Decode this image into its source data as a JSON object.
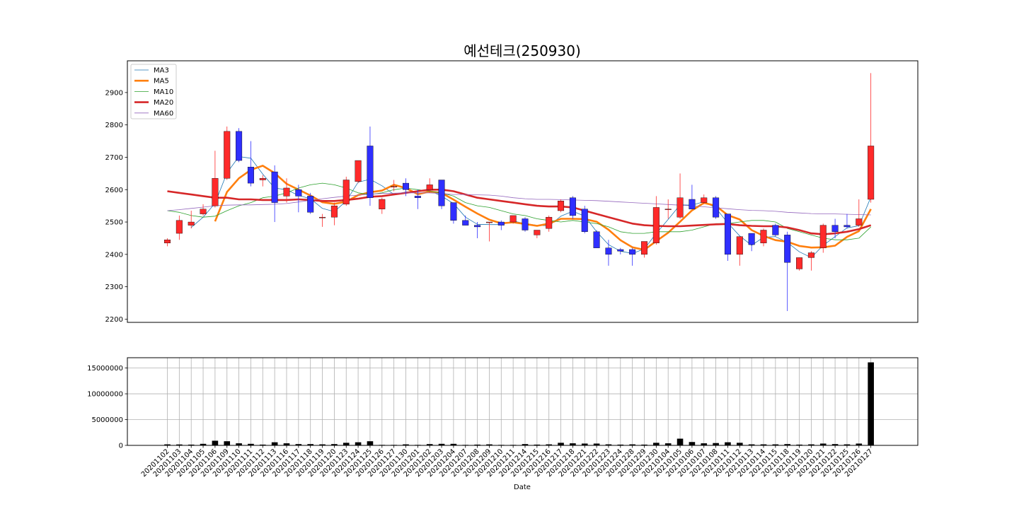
{
  "chart_data": {
    "type": "candlestick",
    "title": "예선테크(250930)",
    "xlabel": "Date",
    "legend": {
      "placement": "top-left",
      "entries": [
        {
          "label": "MA3",
          "color": "#1f77b4"
        },
        {
          "label": "MA5",
          "color": "#ff7f0e"
        },
        {
          "label": "MA10",
          "color": "#2ca02c"
        },
        {
          "label": "MA20",
          "color": "#d62728"
        },
        {
          "label": "MA60",
          "color": "#9467bd"
        }
      ]
    },
    "price_axis": {
      "ylim": [
        2190,
        2998
      ],
      "ticks": [
        2200,
        2300,
        2400,
        2500,
        2600,
        2700,
        2800,
        2900
      ],
      "grid": false
    },
    "volume_axis": {
      "ylim": [
        0,
        17000000
      ],
      "ticks": [
        0,
        5000000,
        10000000,
        15000000
      ],
      "tick_labels": [
        "0",
        "5000000",
        "10000000",
        "15000000"
      ],
      "grid": true
    },
    "colors": {
      "up": "#ff2a2a",
      "down": "#2f2fff",
      "volume": "#000000"
    },
    "dates": [
      "20201102",
      "20201103",
      "20201104",
      "20201105",
      "20201106",
      "20201109",
      "20201110",
      "20201111",
      "20201112",
      "20201113",
      "20201116",
      "20201117",
      "20201118",
      "20201119",
      "20201120",
      "20201123",
      "20201124",
      "20201125",
      "20201126",
      "20201127",
      "20201130",
      "20201201",
      "20201202",
      "20201203",
      "20201204",
      "20201207",
      "20201208",
      "20201209",
      "20201210",
      "20201211",
      "20201214",
      "20201215",
      "20201216",
      "20201217",
      "20201218",
      "20201221",
      "20201222",
      "20201223",
      "20201224",
      "20201228",
      "20201229",
      "20201230",
      "20210104",
      "20210105",
      "20210106",
      "20210107",
      "20210108",
      "20210111",
      "20210112",
      "20210113",
      "20210114",
      "20210115",
      "20210118",
      "20210119",
      "20210120",
      "20210121",
      "20210122",
      "20210125",
      "20210126",
      "20210127"
    ],
    "ohlc": [
      [
        2435,
        2450,
        2425,
        2445
      ],
      [
        2465,
        2520,
        2445,
        2505
      ],
      [
        2490,
        2535,
        2480,
        2500
      ],
      [
        2525,
        2555,
        2520,
        2540
      ],
      [
        2550,
        2720,
        2545,
        2635
      ],
      [
        2635,
        2795,
        2630,
        2780
      ],
      [
        2780,
        2790,
        2685,
        2690
      ],
      [
        2670,
        2750,
        2610,
        2620
      ],
      [
        2630,
        2645,
        2610,
        2635
      ],
      [
        2655,
        2675,
        2500,
        2560
      ],
      [
        2580,
        2635,
        2560,
        2605
      ],
      [
        2600,
        2615,
        2530,
        2580
      ],
      [
        2580,
        2590,
        2525,
        2530
      ],
      [
        2515,
        2525,
        2485,
        2515
      ],
      [
        2515,
        2560,
        2490,
        2550
      ],
      [
        2555,
        2640,
        2550,
        2630
      ],
      [
        2625,
        2690,
        2620,
        2690
      ],
      [
        2735,
        2795,
        2550,
        2575
      ],
      [
        2540,
        2575,
        2525,
        2570
      ],
      [
        2610,
        2630,
        2595,
        2610
      ],
      [
        2620,
        2635,
        2580,
        2600
      ],
      [
        2580,
        2600,
        2540,
        2575
      ],
      [
        2600,
        2635,
        2590,
        2615
      ],
      [
        2630,
        2630,
        2540,
        2550
      ],
      [
        2560,
        2560,
        2495,
        2505
      ],
      [
        2505,
        2520,
        2490,
        2490
      ],
      [
        2490,
        2500,
        2450,
        2485
      ],
      [
        2500,
        2500,
        2440,
        2500
      ],
      [
        2500,
        2505,
        2475,
        2490
      ],
      [
        2500,
        2520,
        2495,
        2520
      ],
      [
        2510,
        2515,
        2470,
        2475
      ],
      [
        2460,
        2475,
        2450,
        2475
      ],
      [
        2480,
        2520,
        2470,
        2515
      ],
      [
        2535,
        2570,
        2530,
        2565
      ],
      [
        2575,
        2580,
        2510,
        2520
      ],
      [
        2540,
        2550,
        2465,
        2470
      ],
      [
        2470,
        2475,
        2420,
        2420
      ],
      [
        2420,
        2445,
        2365,
        2400
      ],
      [
        2415,
        2420,
        2400,
        2410
      ],
      [
        2415,
        2420,
        2365,
        2400
      ],
      [
        2400,
        2440,
        2390,
        2440
      ],
      [
        2435,
        2580,
        2430,
        2545
      ],
      [
        2540,
        2570,
        2510,
        2540
      ],
      [
        2515,
        2650,
        2510,
        2575
      ],
      [
        2570,
        2615,
        2540,
        2540
      ],
      [
        2560,
        2585,
        2555,
        2575
      ],
      [
        2575,
        2580,
        2510,
        2515
      ],
      [
        2525,
        2525,
        2380,
        2400
      ],
      [
        2400,
        2455,
        2365,
        2455
      ],
      [
        2465,
        2465,
        2410,
        2430
      ],
      [
        2435,
        2480,
        2425,
        2475
      ],
      [
        2490,
        2495,
        2455,
        2460
      ],
      [
        2460,
        2470,
        2225,
        2375
      ],
      [
        2355,
        2390,
        2350,
        2390
      ],
      [
        2390,
        2410,
        2350,
        2405
      ],
      [
        2420,
        2495,
        2405,
        2490
      ],
      [
        2490,
        2510,
        2450,
        2470
      ],
      [
        2490,
        2525,
        2480,
        2485
      ],
      [
        2490,
        2570,
        2485,
        2510
      ],
      [
        2570,
        2960,
        2560,
        2735
      ]
    ],
    "volume": [
      200000,
      180000,
      150000,
      300000,
      900000,
      800000,
      400000,
      300000,
      150000,
      600000,
      400000,
      250000,
      250000,
      200000,
      250000,
      500000,
      600000,
      800000,
      100000,
      100000,
      200000,
      100000,
      250000,
      300000,
      300000,
      100000,
      150000,
      200000,
      100000,
      100000,
      250000,
      150000,
      200000,
      500000,
      400000,
      350000,
      350000,
      200000,
      150000,
      200000,
      150000,
      500000,
      400000,
      1300000,
      650000,
      400000,
      450000,
      600000,
      500000,
      200000,
      200000,
      200000,
      250000,
      150000,
      200000,
      350000,
      250000,
      200000,
      350000,
      16100000
    ],
    "moving_averages": {
      "MA3": [
        null,
        null,
        2483,
        2515,
        2558,
        2652,
        2702,
        2697,
        2648,
        2605,
        2600,
        2582,
        2572,
        2542,
        2532,
        2565,
        2623,
        2632,
        2612,
        2585,
        2593,
        2595,
        2597,
        2580,
        2557,
        2515,
        2493,
        2492,
        2492,
        2503,
        2495,
        2490,
        2488,
        2518,
        2533,
        2518,
        2470,
        2430,
        2410,
        2403,
        2417,
        2465,
        2508,
        2553,
        2552,
        2563,
        2543,
        2497,
        2457,
        2428,
        2453,
        2455,
        2437,
        2408,
        2390,
        2428,
        2455,
        2482,
        2488,
        2577
      ],
      "MA5": [
        null,
        null,
        null,
        null,
        2502,
        2593,
        2635,
        2661,
        2674,
        2651,
        2618,
        2600,
        2582,
        2561,
        2556,
        2563,
        2583,
        2592,
        2597,
        2615,
        2605,
        2586,
        2594,
        2590,
        2569,
        2547,
        2526,
        2507,
        2496,
        2499,
        2494,
        2488,
        2495,
        2510,
        2510,
        2509,
        2501,
        2476,
        2444,
        2422,
        2414,
        2441,
        2467,
        2501,
        2536,
        2559,
        2550,
        2521,
        2508,
        2475,
        2457,
        2444,
        2439,
        2426,
        2421,
        2422,
        2427,
        2454,
        2472,
        2540
      ],
      "MA10": [
        2535,
        2530,
        2520,
        2515,
        2518,
        2535,
        2550,
        2560,
        2575,
        2580,
        2590,
        2605,
        2615,
        2620,
        2615,
        2605,
        2590,
        2585,
        2590,
        2600,
        2605,
        2600,
        2595,
        2590,
        2580,
        2560,
        2550,
        2545,
        2535,
        2525,
        2520,
        2510,
        2505,
        2500,
        2505,
        2500,
        2495,
        2485,
        2470,
        2465,
        2465,
        2470,
        2470,
        2470,
        2475,
        2485,
        2495,
        2495,
        2500,
        2505,
        2505,
        2500,
        2480,
        2470,
        2460,
        2450,
        2445,
        2445,
        2450,
        2485
      ],
      "MA20": [
        2595,
        2590,
        2585,
        2580,
        2575,
        2575,
        2570,
        2570,
        2568,
        2568,
        2568,
        2570,
        2568,
        2565,
        2565,
        2568,
        2572,
        2578,
        2580,
        2585,
        2590,
        2595,
        2600,
        2600,
        2595,
        2585,
        2575,
        2570,
        2565,
        2560,
        2555,
        2550,
        2548,
        2548,
        2545,
        2535,
        2525,
        2515,
        2505,
        2495,
        2490,
        2488,
        2487,
        2487,
        2489,
        2491,
        2493,
        2494,
        2490,
        2488,
        2487,
        2487,
        2483,
        2475,
        2465,
        2462,
        2465,
        2470,
        2478,
        2490
      ],
      "MA60": [
        2535,
        2538,
        2542,
        2546,
        2550,
        2552,
        2553,
        2553,
        2554,
        2555,
        2557,
        2562,
        2567,
        2572,
        2576,
        2580,
        2583,
        2586,
        2588,
        2589,
        2590,
        2590,
        2590,
        2588,
        2585,
        2585,
        2584,
        2583,
        2580,
        2575,
        2572,
        2570,
        2570,
        2569,
        2568,
        2567,
        2566,
        2564,
        2562,
        2560,
        2558,
        2556,
        2554,
        2552,
        2550,
        2547,
        2544,
        2541,
        2538,
        2536,
        2535,
        2533,
        2530,
        2528,
        2526,
        2525,
        2525,
        2524,
        2523,
        2522
      ]
    }
  }
}
